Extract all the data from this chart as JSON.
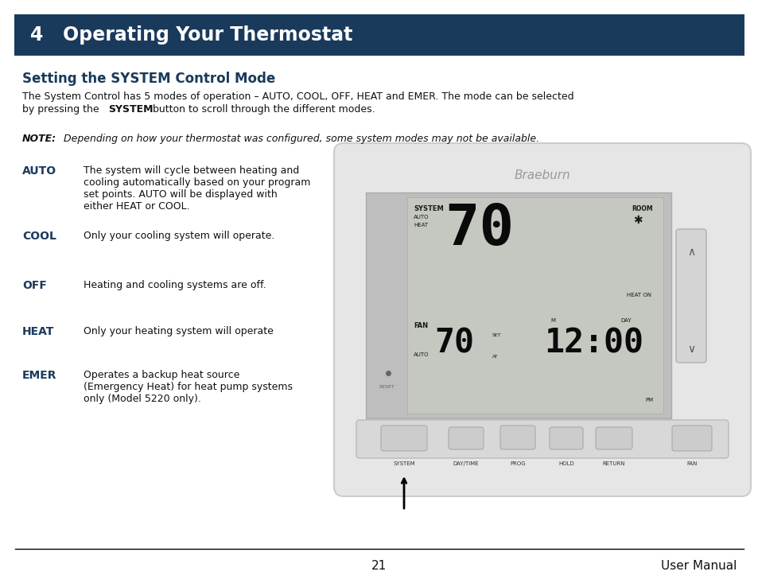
{
  "bg_color": "#ffffff",
  "header_bg": "#1a3a5c",
  "header_text": "4   Operating Your Thermostat",
  "header_text_color": "#ffffff",
  "header_fontsize": 17,
  "section_title": "Setting the SYSTEM Control Mode",
  "section_title_color": "#1a3a5c",
  "section_title_fontsize": 12,
  "modes": [
    {
      "label": "AUTO",
      "desc": "The system will cycle between heating and\ncooling automatically based on your program\nset points. AUTO will be displayed with\neither HEAT or COOL."
    },
    {
      "label": "COOL",
      "desc": "Only your cooling system will operate."
    },
    {
      "label": "OFF",
      "desc": "Heating and cooling systems are off."
    },
    {
      "label": "HEAT",
      "desc": "Only your heating system will operate"
    },
    {
      "label": "EMER",
      "desc": "Operates a backup heat source\n(Emergency Heat) for heat pump systems\nonly (Model 5220 only)."
    }
  ],
  "label_color": "#1a3a5c",
  "footer_page": "21",
  "footer_right": "User Manual",
  "thermostat_bg": "#e6e6e6",
  "thermostat_border": "#cccccc",
  "screen_bg": "#c8c8c4",
  "lcd_bg": "#c0c4be",
  "scroll_btn_bg": "#d0d0d0"
}
